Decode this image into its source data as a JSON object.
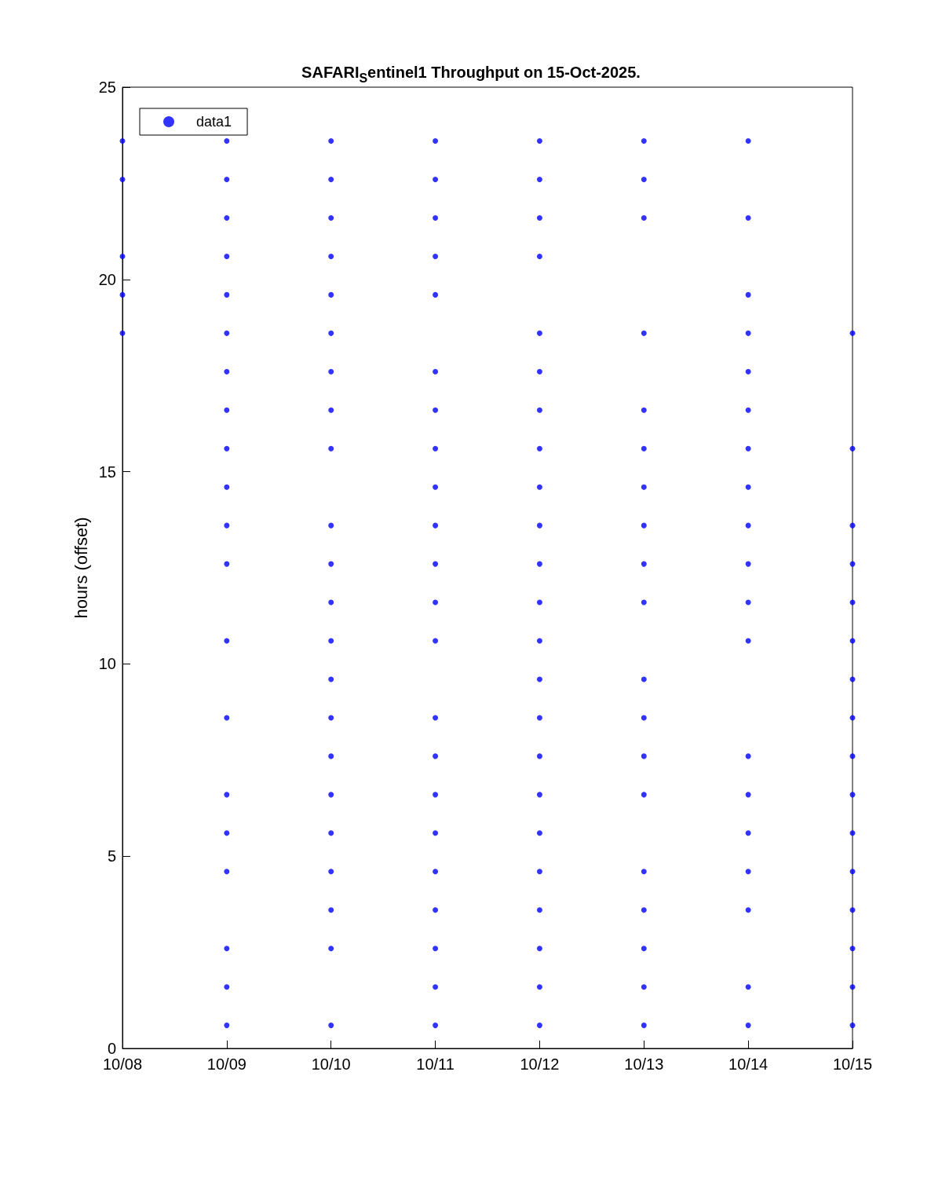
{
  "chart_data": {
    "type": "scatter",
    "title": "SAFARI$_{S}$entinel1 Throughput on 15-Oct-2025.",
    "ylabel": "hours (offset)",
    "xlim": [
      "--10-08",
      "--10-15"
    ],
    "xticks": [
      {
        "value": "--10-08",
        "label": "10/08"
      },
      {
        "value": "--10-09",
        "label": "10/09"
      },
      {
        "value": "--10-10",
        "label": "10/10"
      },
      {
        "value": "--10-11",
        "label": "10/11"
      },
      {
        "value": "--10-12",
        "label": "10/12"
      },
      {
        "value": "--10-13",
        "label": "10/13"
      },
      {
        "value": "--10-14",
        "label": "10/14"
      },
      {
        "value": "--10-15",
        "label": "10/15"
      }
    ],
    "ylim": [
      0,
      25
    ],
    "yticks": [
      0,
      5,
      10,
      15,
      20,
      25
    ],
    "legend": "top left",
    "marker": "circle",
    "grid": false,
    "series": [
      {
        "name": "data1",
        "color": "#0000ff",
        "x": [
          "--10-08",
          "--10-08",
          "--10-08",
          "--10-08",
          "--10-08",
          "--10-09",
          "--10-09",
          "--10-09",
          "--10-09",
          "--10-09",
          "--10-09",
          "--10-09",
          "--10-09",
          "--10-09",
          "--10-09",
          "--10-09",
          "--10-09",
          "--10-09",
          "--10-09",
          "--10-09",
          "--10-09",
          "--10-09",
          "--10-09",
          "--10-09",
          "--10-09",
          "--10-10",
          "--10-10",
          "--10-10",
          "--10-10",
          "--10-10",
          "--10-10",
          "--10-10",
          "--10-10",
          "--10-10",
          "--10-10",
          "--10-10",
          "--10-10",
          "--10-10",
          "--10-10",
          "--10-10",
          "--10-10",
          "--10-10",
          "--10-10",
          "--10-10",
          "--10-10",
          "--10-10",
          "--10-10",
          "--10-11",
          "--10-11",
          "--10-11",
          "--10-11",
          "--10-11",
          "--10-11",
          "--10-11",
          "--10-11",
          "--10-11",
          "--10-11",
          "--10-11",
          "--10-11",
          "--10-11",
          "--10-11",
          "--10-11",
          "--10-11",
          "--10-11",
          "--10-11",
          "--10-11",
          "--10-11",
          "--10-11",
          "--10-11",
          "--10-12",
          "--10-12",
          "--10-12",
          "--10-12",
          "--10-12",
          "--10-12",
          "--10-12",
          "--10-12",
          "--10-12",
          "--10-12",
          "--10-12",
          "--10-12",
          "--10-12",
          "--10-12",
          "--10-12",
          "--10-12",
          "--10-12",
          "--10-12",
          "--10-12",
          "--10-12",
          "--10-12",
          "--10-12",
          "--10-12",
          "--10-13",
          "--10-13",
          "--10-13",
          "--10-13",
          "--10-13",
          "--10-13",
          "--10-13",
          "--10-13",
          "--10-13",
          "--10-13",
          "--10-13",
          "--10-13",
          "--10-13",
          "--10-13",
          "--10-13",
          "--10-13",
          "--10-13",
          "--10-13",
          "--10-13",
          "--10-14",
          "--10-14",
          "--10-14",
          "--10-14",
          "--10-14",
          "--10-14",
          "--10-14",
          "--10-14",
          "--10-14",
          "--10-14",
          "--10-14",
          "--10-14",
          "--10-14",
          "--10-14",
          "--10-14",
          "--10-14",
          "--10-14",
          "--10-14",
          "--10-14",
          "--10-15",
          "--10-15",
          "--10-15",
          "--10-15",
          "--10-15",
          "--10-15",
          "--10-15",
          "--10-15",
          "--10-15",
          "--10-15",
          "--10-15",
          "--10-15",
          "--10-15",
          "--10-15",
          "--10-15",
          "--10-15"
        ],
        "values": [
          23.6,
          22.6,
          20.6,
          19.6,
          18.6,
          23.6,
          22.6,
          21.6,
          20.6,
          19.6,
          18.6,
          17.6,
          16.6,
          15.6,
          14.6,
          13.6,
          12.6,
          10.6,
          8.6,
          6.6,
          5.6,
          4.6,
          2.6,
          1.6,
          0.6,
          23.6,
          22.6,
          21.6,
          20.6,
          19.6,
          18.6,
          17.6,
          16.6,
          15.6,
          13.6,
          12.6,
          11.6,
          10.6,
          9.6,
          8.6,
          7.6,
          6.6,
          5.6,
          4.6,
          3.6,
          2.6,
          0.6,
          23.6,
          22.6,
          21.6,
          20.6,
          19.6,
          17.6,
          16.6,
          15.6,
          14.6,
          13.6,
          12.6,
          11.6,
          10.6,
          8.6,
          7.6,
          6.6,
          5.6,
          4.6,
          3.6,
          2.6,
          1.6,
          0.6,
          23.6,
          22.6,
          21.6,
          20.6,
          18.6,
          17.6,
          16.6,
          15.6,
          14.6,
          13.6,
          12.6,
          11.6,
          10.6,
          9.6,
          8.6,
          7.6,
          6.6,
          5.6,
          4.6,
          3.6,
          2.6,
          1.6,
          0.6,
          23.6,
          22.6,
          21.6,
          18.6,
          16.6,
          15.6,
          14.6,
          13.6,
          12.6,
          11.6,
          9.6,
          8.6,
          7.6,
          6.6,
          4.6,
          3.6,
          2.6,
          1.6,
          0.6,
          23.6,
          21.6,
          19.6,
          18.6,
          17.6,
          16.6,
          15.6,
          14.6,
          13.6,
          12.6,
          11.6,
          10.6,
          7.6,
          6.6,
          5.6,
          4.6,
          3.6,
          1.6,
          0.6,
          18.6,
          15.6,
          13.6,
          12.6,
          11.6,
          10.6,
          9.6,
          8.6,
          7.6,
          6.6,
          5.6,
          4.6,
          3.6,
          2.6,
          1.6,
          0.6
        ]
      }
    ]
  }
}
